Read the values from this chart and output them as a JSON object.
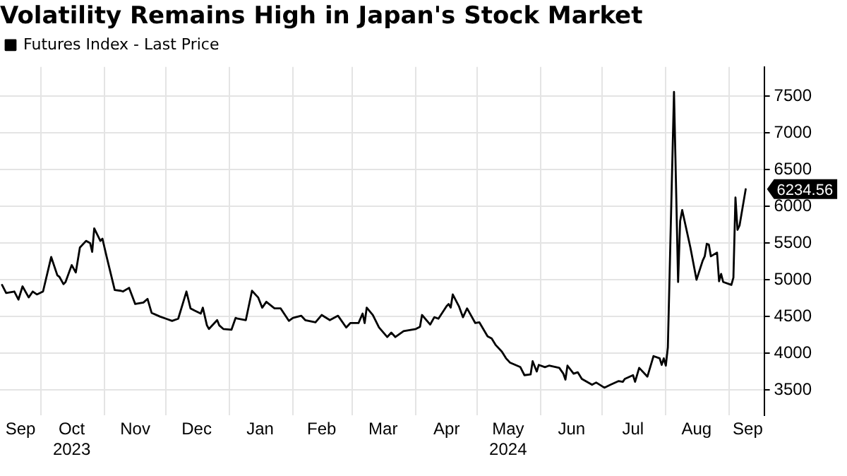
{
  "chart_data": {
    "type": "line",
    "title": "Volatility Remains High in Japan's Stock Market",
    "x": [
      "2023-09-12",
      "2023-09-14",
      "2023-09-18",
      "2023-09-20",
      "2023-09-22",
      "2023-09-25",
      "2023-09-27",
      "2023-09-29",
      "2023-10-02",
      "2023-10-06",
      "2023-10-09",
      "2023-10-10",
      "2023-10-12",
      "2023-10-13",
      "2023-10-16",
      "2023-10-18",
      "2023-10-20",
      "2023-10-23",
      "2023-10-25",
      "2023-10-26",
      "2023-10-27",
      "2023-10-30",
      "2023-10-31",
      "2023-11-02",
      "2023-11-06",
      "2023-11-09",
      "2023-11-10",
      "2023-11-13",
      "2023-11-16",
      "2023-11-20",
      "2023-11-22",
      "2023-11-24",
      "2023-11-28",
      "2023-12-01",
      "2023-12-04",
      "2023-12-07",
      "2023-12-11",
      "2023-12-13",
      "2023-12-15",
      "2023-12-18",
      "2023-12-19",
      "2023-12-21",
      "2023-12-22",
      "2023-12-26",
      "2023-12-27",
      "2023-12-29",
      "2024-01-02",
      "2024-01-04",
      "2024-01-05",
      "2024-01-09",
      "2024-01-12",
      "2024-01-15",
      "2024-01-17",
      "2024-01-19",
      "2024-01-23",
      "2024-01-26",
      "2024-01-30",
      "2024-02-01",
      "2024-02-05",
      "2024-02-07",
      "2024-02-12",
      "2024-02-15",
      "2024-02-19",
      "2024-02-23",
      "2024-02-27",
      "2024-02-29",
      "2024-03-04",
      "2024-03-06",
      "2024-03-07",
      "2024-03-08",
      "2024-03-11",
      "2024-03-14",
      "2024-03-18",
      "2024-03-20",
      "2024-03-22",
      "2024-03-26",
      "2024-04-01",
      "2024-04-03",
      "2024-04-04",
      "2024-04-08",
      "2024-04-10",
      "2024-04-12",
      "2024-04-16",
      "2024-04-17",
      "2024-04-18",
      "2024-04-19",
      "2024-04-22",
      "2024-04-24",
      "2024-04-26",
      "2024-04-30",
      "2024-05-02",
      "2024-05-06",
      "2024-05-08",
      "2024-05-10",
      "2024-05-13",
      "2024-05-15",
      "2024-05-17",
      "2024-05-22",
      "2024-05-24",
      "2024-05-27",
      "2024-05-28",
      "2024-05-30",
      "2024-05-31",
      "2024-06-03",
      "2024-06-05",
      "2024-06-10",
      "2024-06-12",
      "2024-06-13",
      "2024-06-14",
      "2024-06-17",
      "2024-06-19",
      "2024-06-21",
      "2024-06-26",
      "2024-06-28",
      "2024-07-02",
      "2024-07-05",
      "2024-07-09",
      "2024-07-11",
      "2024-07-12",
      "2024-07-16",
      "2024-07-17",
      "2024-07-19",
      "2024-07-23",
      "2024-07-26",
      "2024-07-29",
      "2024-07-30",
      "2024-07-31",
      "2024-08-01",
      "2024-08-02",
      "2024-08-05",
      "2024-08-06",
      "2024-08-07",
      "2024-08-08",
      "2024-08-09",
      "2024-08-13",
      "2024-08-16",
      "2024-08-19",
      "2024-08-20",
      "2024-08-21",
      "2024-08-22",
      "2024-08-23",
      "2024-08-26",
      "2024-08-27",
      "2024-08-28",
      "2024-08-29",
      "2024-09-02",
      "2024-09-03",
      "2024-09-04",
      "2024-09-05",
      "2024-09-06",
      "2024-09-09"
    ],
    "series": [
      {
        "name": "Futures Index - Last Price",
        "color": "#000000",
        "values": [
          4930,
          4820,
          4840,
          4730,
          4910,
          4760,
          4840,
          4800,
          4840,
          5310,
          5060,
          5040,
          4940,
          4970,
          5200,
          5100,
          5440,
          5530,
          5500,
          5380,
          5700,
          5530,
          5560,
          5320,
          4860,
          4850,
          4840,
          4890,
          4670,
          4690,
          4740,
          4550,
          4500,
          4470,
          4440,
          4470,
          4840,
          4610,
          4580,
          4540,
          4620,
          4380,
          4330,
          4450,
          4380,
          4330,
          4320,
          4480,
          4470,
          4450,
          4850,
          4760,
          4620,
          4700,
          4610,
          4610,
          4440,
          4480,
          4510,
          4450,
          4420,
          4520,
          4450,
          4510,
          4350,
          4410,
          4410,
          4540,
          4410,
          4620,
          4520,
          4350,
          4220,
          4280,
          4220,
          4300,
          4330,
          4360,
          4520,
          4390,
          4490,
          4470,
          4640,
          4670,
          4620,
          4800,
          4640,
          4490,
          4610,
          4410,
          4420,
          4230,
          4200,
          4110,
          4020,
          3930,
          3870,
          3810,
          3700,
          3710,
          3890,
          3750,
          3840,
          3810,
          3830,
          3800,
          3720,
          3640,
          3830,
          3720,
          3740,
          3650,
          3570,
          3600,
          3530,
          3570,
          3620,
          3610,
          3650,
          3700,
          3610,
          3800,
          3680,
          3960,
          3930,
          3840,
          3930,
          3830,
          4080,
          7560,
          6270,
          4970,
          5800,
          5950,
          5440,
          5000,
          5260,
          5320,
          5490,
          5480,
          5320,
          5370,
          4980,
          5080,
          4970,
          4930,
          5030,
          6120,
          5680,
          5740,
          6234.56
        ]
      }
    ],
    "xlim": [
      "2023-09-11",
      "2024-09-18"
    ],
    "xticks": [
      {
        "value": "2023-09-21",
        "label": "Sep"
      },
      {
        "value": "2023-10-01",
        "label": null
      },
      {
        "value": "2023-10-16",
        "label": "Oct\n2023"
      },
      {
        "value": "2023-11-01",
        "label": null
      },
      {
        "value": "2023-11-16",
        "label": "Nov"
      },
      {
        "value": "2023-12-01",
        "label": null
      },
      {
        "value": "2023-12-16",
        "label": "Dec"
      },
      {
        "value": "2024-01-01",
        "label": null
      },
      {
        "value": "2024-01-16",
        "label": "Jan"
      },
      {
        "value": "2024-02-01",
        "label": null
      },
      {
        "value": "2024-02-15",
        "label": "Feb"
      },
      {
        "value": "2024-03-01",
        "label": null
      },
      {
        "value": "2024-03-16",
        "label": "Mar"
      },
      {
        "value": "2024-04-01",
        "label": null
      },
      {
        "value": "2024-04-16",
        "label": "Apr"
      },
      {
        "value": "2024-05-01",
        "label": null
      },
      {
        "value": "2024-05-16",
        "label": "May\n2024"
      },
      {
        "value": "2024-06-01",
        "label": null
      },
      {
        "value": "2024-06-16",
        "label": "Jun"
      },
      {
        "value": "2024-07-01",
        "label": null
      },
      {
        "value": "2024-07-16",
        "label": "Jul"
      },
      {
        "value": "2024-08-01",
        "label": null
      },
      {
        "value": "2024-08-16",
        "label": "Aug"
      },
      {
        "value": "2024-09-01",
        "label": null
      },
      {
        "value": "2024-09-10",
        "label": "Sep"
      }
    ],
    "ylim": [
      3150,
      7900
    ],
    "yticks": [
      3500,
      4000,
      4500,
      5000,
      5500,
      6000,
      6500,
      7000,
      7500
    ],
    "annotations": [
      {
        "text": "6234.56",
        "x": "2024-09-09",
        "y": 6234.56
      }
    ],
    "grid": true,
    "legend": "top left",
    "marker": "none",
    "line_style": "solid"
  }
}
